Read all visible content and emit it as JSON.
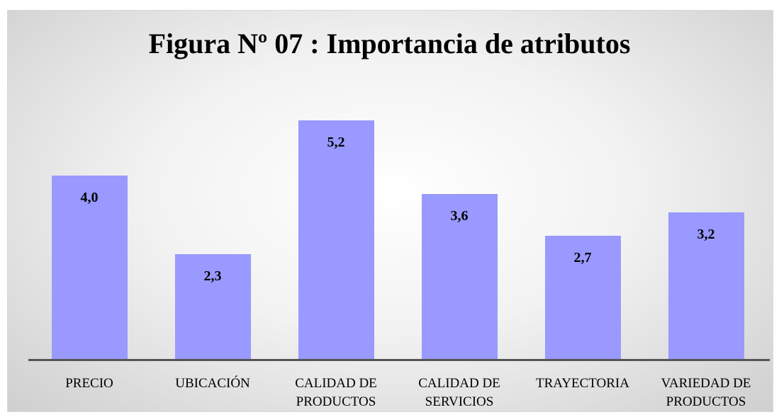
{
  "chart_data": {
    "type": "bar",
    "title": "Figura Nº 07 : Importancia de atributos",
    "categories": [
      "PRECIO",
      "UBICACIÓN",
      "CALIDAD DE PRODUCTOS",
      "CALIDAD DE SERVICIOS",
      "TRAYECTORIA",
      "VARIEDAD DE PRODUCTOS"
    ],
    "values": [
      4.0,
      2.3,
      5.2,
      3.6,
      2.7,
      3.2
    ],
    "value_labels": [
      "4,0",
      "2,3",
      "5,2",
      "3,6",
      "2,7",
      "3,2"
    ],
    "color": "#9999ff"
  }
}
